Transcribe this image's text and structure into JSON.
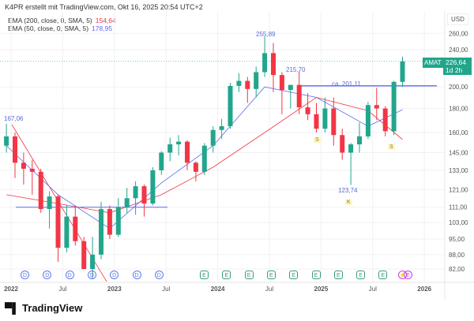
{
  "header": "K4PR erstellt mit TradingView.com, Okt 16, 2025 20:54 UTC+2",
  "legend": [
    {
      "label": "EMA (200, close, 0, SMA, 5)",
      "value": "154,64",
      "color": "#f23645"
    },
    {
      "label": "EMA (50, close, 0, SMA, 5)",
      "value": "178,95",
      "color": "#5b6bf0"
    }
  ],
  "currency": "USD",
  "symbol": "AMAT",
  "last_price": "226,64",
  "countdown": "1d 2h",
  "colors": {
    "up": "#22a68b",
    "down": "#f23645",
    "accent": "#22a68b"
  },
  "annotations": {
    "high_2021": "167,06",
    "ath": "255,89",
    "high_2": "215,70",
    "level": "ca. 201,11",
    "low": "123,74",
    "s1": "S",
    "s2": "S",
    "k": "K"
  },
  "events": {
    "dividends": [
      "D",
      "D",
      "D",
      "D",
      "D",
      "D",
      "D"
    ],
    "earnings": [
      "E",
      "E",
      "E",
      "E",
      "E",
      "E",
      "E",
      "E",
      "E"
    ],
    "upcoming": [
      "⚡",
      "E"
    ]
  },
  "logo": "TradingView",
  "chart_data": {
    "type": "candlestick",
    "scale": "log",
    "y_ticks": [
      "260,00",
      "240,00",
      "200,00",
      "180,00",
      "160,00",
      "145,00",
      "133,00",
      "121,00",
      "111,00",
      "103,00",
      "95,00",
      "88,00",
      "82,00"
    ],
    "x_ticks": [
      "2022",
      "Jul",
      "2023",
      "Jul",
      "2024",
      "Jul",
      "2025",
      "Jul",
      "2026"
    ],
    "levels": [
      201.11,
      111
    ],
    "months": [
      "2021-12",
      "2022-01",
      "2022-02",
      "2022-03",
      "2022-04",
      "2022-05",
      "2022-06",
      "2022-07",
      "2022-08",
      "2022-09",
      "2022-10",
      "2022-11",
      "2022-12",
      "2023-01",
      "2023-02",
      "2023-03",
      "2023-04",
      "2023-05",
      "2023-06",
      "2023-07",
      "2023-08",
      "2023-09",
      "2023-10",
      "2023-11",
      "2023-12",
      "2024-01",
      "2024-02",
      "2024-03",
      "2024-04",
      "2024-05",
      "2024-06",
      "2024-07",
      "2024-08",
      "2024-09",
      "2024-10",
      "2024-11",
      "2024-12",
      "2025-01",
      "2025-02",
      "2025-03",
      "2025-04",
      "2025-05",
      "2025-06",
      "2025-07",
      "2025-08",
      "2025-09",
      "2025-10"
    ],
    "ohlc": [
      [
        150,
        167.06,
        145,
        157
      ],
      [
        157,
        160,
        128,
        138
      ],
      [
        138,
        145,
        124,
        134
      ],
      [
        134,
        140,
        118,
        132
      ],
      [
        132,
        134,
        108,
        110
      ],
      [
        110,
        120,
        100,
        117
      ],
      [
        117,
        118,
        85,
        91
      ],
      [
        91,
        112,
        89,
        106
      ],
      [
        106,
        112,
        92,
        94
      ],
      [
        94,
        96,
        82,
        82
      ],
      [
        82,
        96,
        78,
        88
      ],
      [
        88,
        114,
        86,
        110
      ],
      [
        110,
        112,
        95,
        97
      ],
      [
        97,
        116,
        96,
        111
      ],
      [
        111,
        122,
        108,
        116
      ],
      [
        116,
        126,
        107,
        123
      ],
      [
        123,
        124,
        106,
        113
      ],
      [
        113,
        135,
        112,
        133
      ],
      [
        133,
        146,
        130,
        145
      ],
      [
        145,
        156,
        139,
        151
      ],
      [
        151,
        158,
        143,
        153
      ],
      [
        153,
        154,
        133,
        138
      ],
      [
        138,
        139,
        126,
        132
      ],
      [
        132,
        152,
        130,
        150
      ],
      [
        150,
        165,
        145,
        162
      ],
      [
        162,
        171,
        155,
        165
      ],
      [
        165,
        204,
        163,
        201
      ],
      [
        201,
        214,
        195,
        206
      ],
      [
        206,
        210,
        185,
        198
      ],
      [
        198,
        221,
        190,
        215
      ],
      [
        215,
        255.89,
        210,
        236
      ],
      [
        236,
        248,
        195,
        212
      ],
      [
        212,
        215,
        175,
        197
      ],
      [
        197,
        202,
        180,
        202
      ],
      [
        202,
        215.7,
        175,
        181
      ],
      [
        181,
        194,
        170,
        175
      ],
      [
        175,
        185,
        160,
        163
      ],
      [
        163,
        190,
        160,
        180
      ],
      [
        180,
        190,
        150,
        158
      ],
      [
        158,
        163,
        140,
        145
      ],
      [
        145,
        152,
        123.74,
        151
      ],
      [
        151,
        168,
        145,
        157
      ],
      [
        157,
        186,
        155,
        183
      ],
      [
        183,
        199,
        170,
        180
      ],
      [
        180,
        182,
        157,
        161
      ],
      [
        161,
        206,
        158,
        205
      ],
      [
        205,
        232,
        200,
        226.64
      ]
    ],
    "ema200": [
      {
        "x": "2021-12",
        "y": 118
      },
      {
        "x": "2022-06",
        "y": 113
      },
      {
        "x": "2022-12",
        "y": 108
      },
      {
        "x": "2023-06",
        "y": 118
      },
      {
        "x": "2023-12",
        "y": 135
      },
      {
        "x": "2024-06",
        "y": 160
      },
      {
        "x": "2024-12",
        "y": 190
      },
      {
        "x": "2025-06",
        "y": 178
      },
      {
        "x": "2025-10",
        "y": 154.64
      }
    ],
    "ema50": [
      {
        "x": "2021-12",
        "y": 150
      },
      {
        "x": "2022-06",
        "y": 118
      },
      {
        "x": "2022-12",
        "y": 100
      },
      {
        "x": "2023-06",
        "y": 125
      },
      {
        "x": "2023-12",
        "y": 150
      },
      {
        "x": "2024-06",
        "y": 200
      },
      {
        "x": "2024-12",
        "y": 190
      },
      {
        "x": "2025-06",
        "y": 165
      },
      {
        "x": "2025-10",
        "y": 178.95
      }
    ]
  }
}
